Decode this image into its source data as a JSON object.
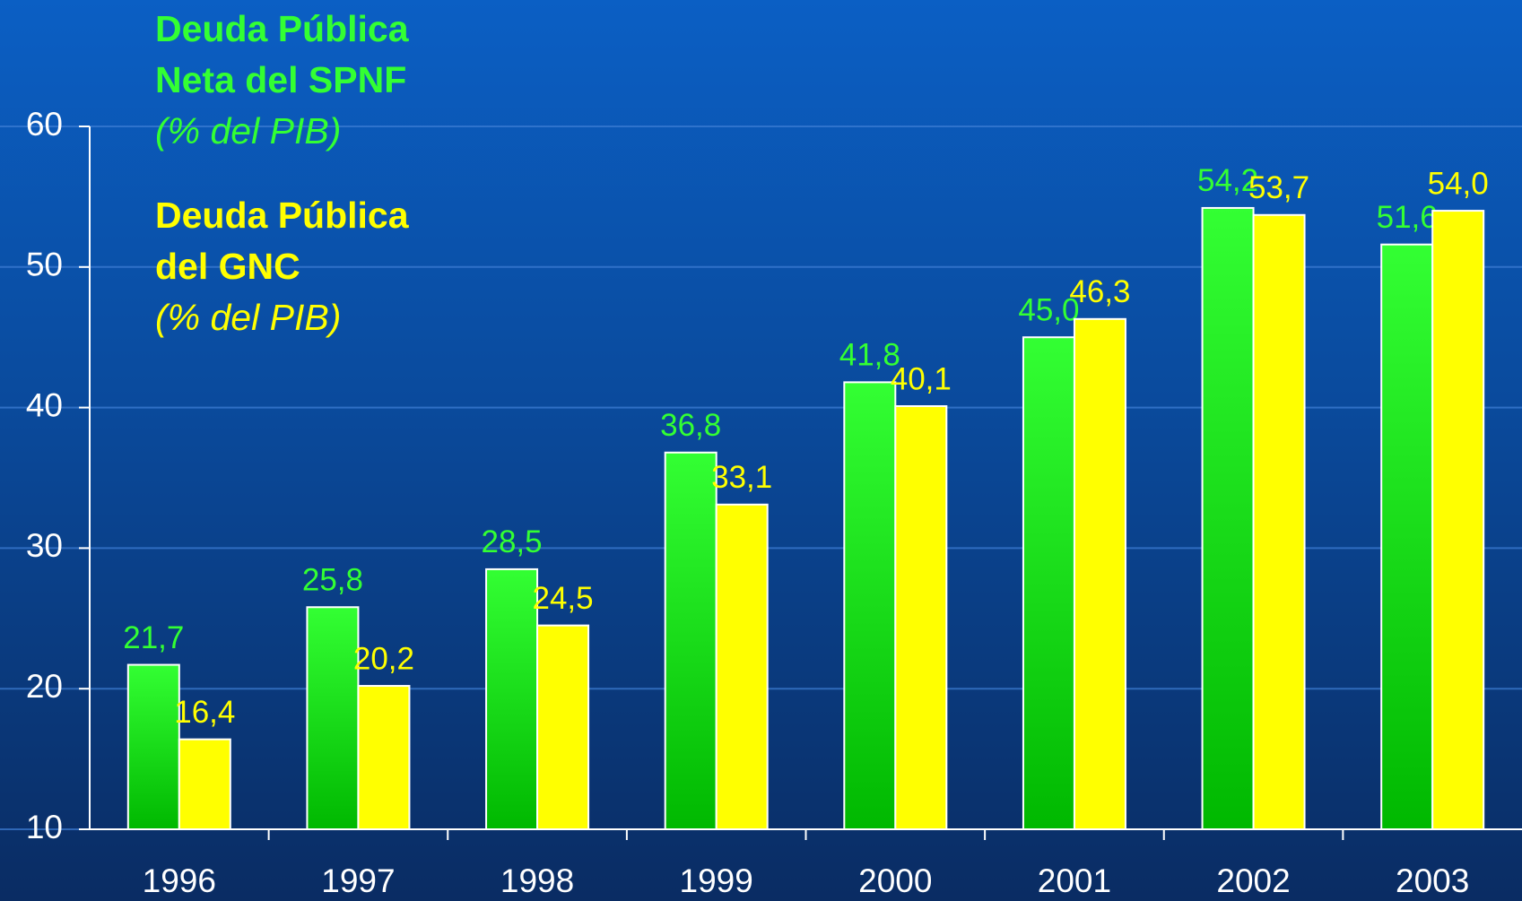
{
  "chart_data": {
    "type": "bar",
    "categories": [
      "1996",
      "1997",
      "1998",
      "1999",
      "2000",
      "2001",
      "2002",
      "2003"
    ],
    "series": [
      {
        "name": "Deuda Pública Neta del SPNF",
        "unit": "(% del PIB)",
        "color": "#33ff33",
        "values": [
          21.7,
          25.8,
          28.5,
          36.8,
          41.8,
          45.0,
          54.2,
          51.6
        ],
        "value_labels": [
          "21,7",
          "25,8",
          "28,5",
          "36,8",
          "41,8",
          "45,0",
          "54,2",
          "51,6"
        ]
      },
      {
        "name": "Deuda Pública del GNC",
        "unit": "(% del PIB)",
        "color": "#ffff00",
        "values": [
          16.4,
          20.2,
          24.5,
          33.1,
          40.1,
          46.3,
          53.7,
          54.0
        ],
        "value_labels": [
          "16,4",
          "20,2",
          "24,5",
          "33,1",
          "40,1",
          "46,3",
          "53,7",
          "54,0"
        ]
      }
    ],
    "ylim": [
      10,
      60
    ],
    "yticks": [
      10,
      20,
      30,
      40,
      50,
      60
    ],
    "grid": true
  }
}
